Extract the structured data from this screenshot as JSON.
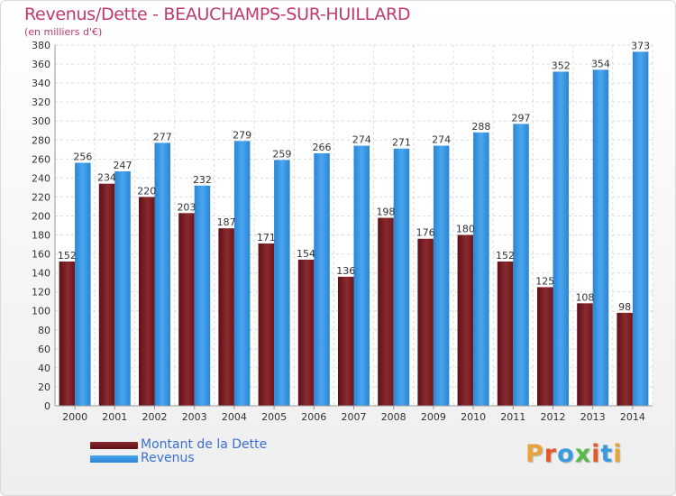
{
  "page": {
    "title": "Revenus/Dette - BEAUCHAMPS-SUR-HUILLARD",
    "subtitle": "(en milliers d'€)"
  },
  "legend": {
    "dette_label": "Montant de la Dette",
    "revenus_label": "Revenus"
  },
  "logo": {
    "text": "Proxiti",
    "letter_colors": [
      "#e8a33b",
      "#e35b2b",
      "#3a9be0",
      "#59b94a",
      "#e35b2b",
      "#3a9be0",
      "#e8a33b"
    ]
  },
  "colors": {
    "dette": "#7b1d22",
    "revenus": "#2f8fde",
    "accent_text": "#c0396c",
    "legend_text": "#3b6fd4"
  },
  "chart_data": {
    "type": "bar",
    "categories": [
      "2000",
      "2001",
      "2002",
      "2003",
      "2004",
      "2005",
      "2006",
      "2007",
      "2008",
      "2009",
      "2010",
      "2011",
      "2012",
      "2013",
      "2014"
    ],
    "series": [
      {
        "name": "Montant de la Dette",
        "values": [
          152,
          234,
          220,
          203,
          187,
          171,
          154,
          136,
          198,
          176,
          180,
          152,
          125,
          108,
          98
        ]
      },
      {
        "name": "Revenus",
        "values": [
          256,
          247,
          277,
          232,
          279,
          259,
          266,
          274,
          271,
          274,
          288,
          297,
          352,
          354,
          373
        ]
      }
    ],
    "ylim": [
      0,
      380
    ],
    "ytick_step": 20,
    "grid": true,
    "legend_position": "bottom-left"
  }
}
